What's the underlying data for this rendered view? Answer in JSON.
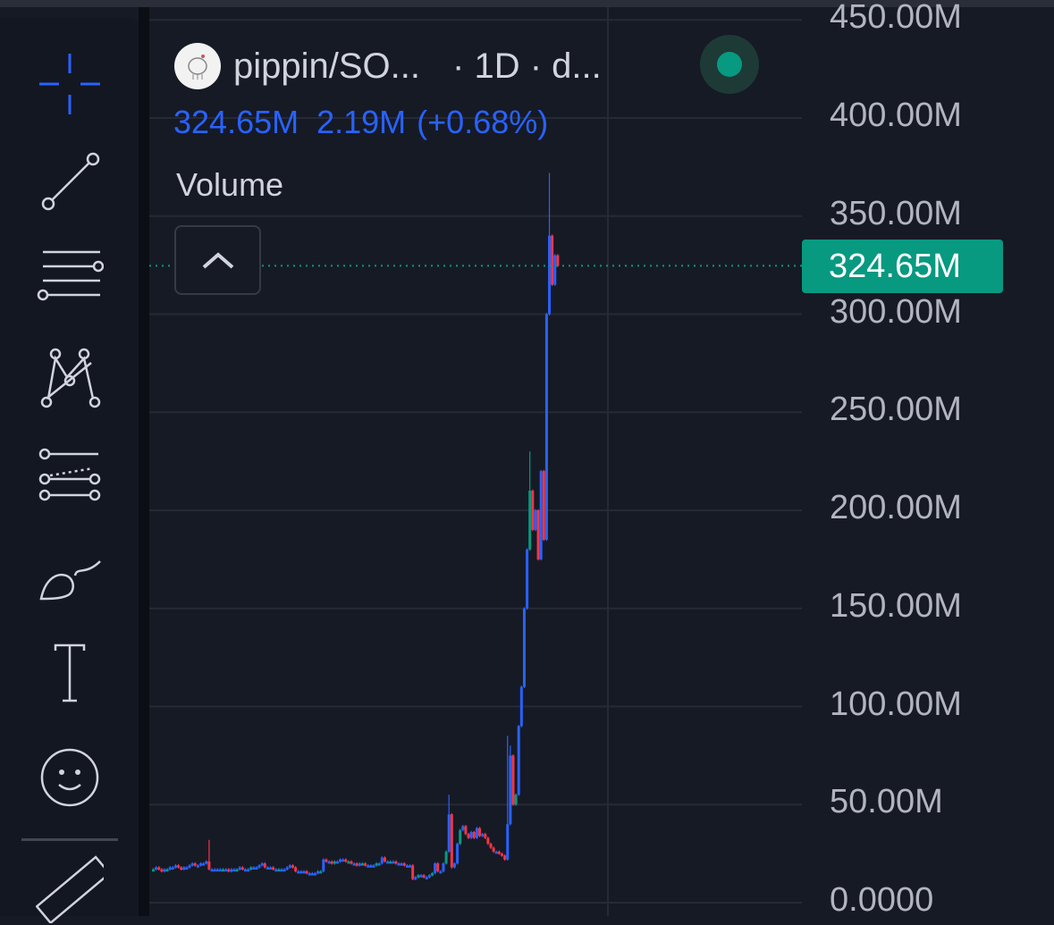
{
  "legend": {
    "symbol": "pippin/SO...",
    "interval_source": "· 1D · d...",
    "last": "324.65M",
    "change": "2.19M",
    "change_pct": "(+0.68%)",
    "indicator": "Volume"
  },
  "toolbar": {
    "tools": [
      "crosshair-icon",
      "trendline-icon",
      "fib-retracement-icon",
      "pattern-icon",
      "projection-icon",
      "brush-icon",
      "text-icon",
      "emoji-icon",
      "ruler-icon"
    ]
  },
  "price_scale": {
    "labels": [
      "450.00M",
      "400.00M",
      "350.00M",
      "300.00M",
      "250.00M",
      "200.00M",
      "150.00M",
      "100.00M",
      "50.00M",
      "0.0000"
    ],
    "current_price": "324.65M"
  },
  "colors": {
    "up": "#2962ff",
    "down": "#f23645",
    "alt_up": "#089981",
    "tag": "#089981",
    "legend": "#2962ff"
  },
  "chart_data": {
    "type": "candlestick",
    "unit": "M",
    "ylim": [
      0,
      450
    ],
    "closes": [
      17,
      18,
      17,
      16,
      17,
      17,
      18,
      18,
      19,
      18,
      17,
      18,
      18,
      19,
      20,
      19,
      19,
      20,
      20,
      21,
      17,
      17,
      17,
      17,
      17,
      17,
      17,
      16,
      17,
      17,
      17,
      18,
      17,
      17,
      17,
      18,
      18,
      18,
      19,
      20,
      18,
      18,
      18,
      17,
      17,
      17,
      17,
      17,
      18,
      19,
      18,
      16,
      16,
      16,
      16,
      15,
      15,
      15,
      15,
      16,
      16,
      22,
      21,
      21,
      20,
      21,
      21,
      22,
      22,
      21,
      21,
      20,
      20,
      19,
      20,
      20,
      19,
      19,
      19,
      19,
      20,
      20,
      23,
      21,
      21,
      21,
      21,
      20,
      20,
      20,
      19,
      19,
      19,
      12,
      13,
      14,
      14,
      13,
      13,
      14,
      15,
      20,
      16,
      16,
      20,
      26,
      45,
      18,
      20,
      30,
      37,
      39,
      35,
      33,
      36,
      33,
      38,
      34,
      35,
      33,
      30,
      28,
      26,
      26,
      25,
      24,
      22,
      40,
      75,
      50,
      55,
      90,
      110,
      150,
      180,
      210,
      190,
      200,
      175,
      220,
      185,
      300,
      340,
      315,
      330,
      324.65
    ],
    "wicks": {
      "20": 32,
      "106": 55,
      "127": 85,
      "128": 80,
      "135": 230,
      "142": 372
    }
  }
}
